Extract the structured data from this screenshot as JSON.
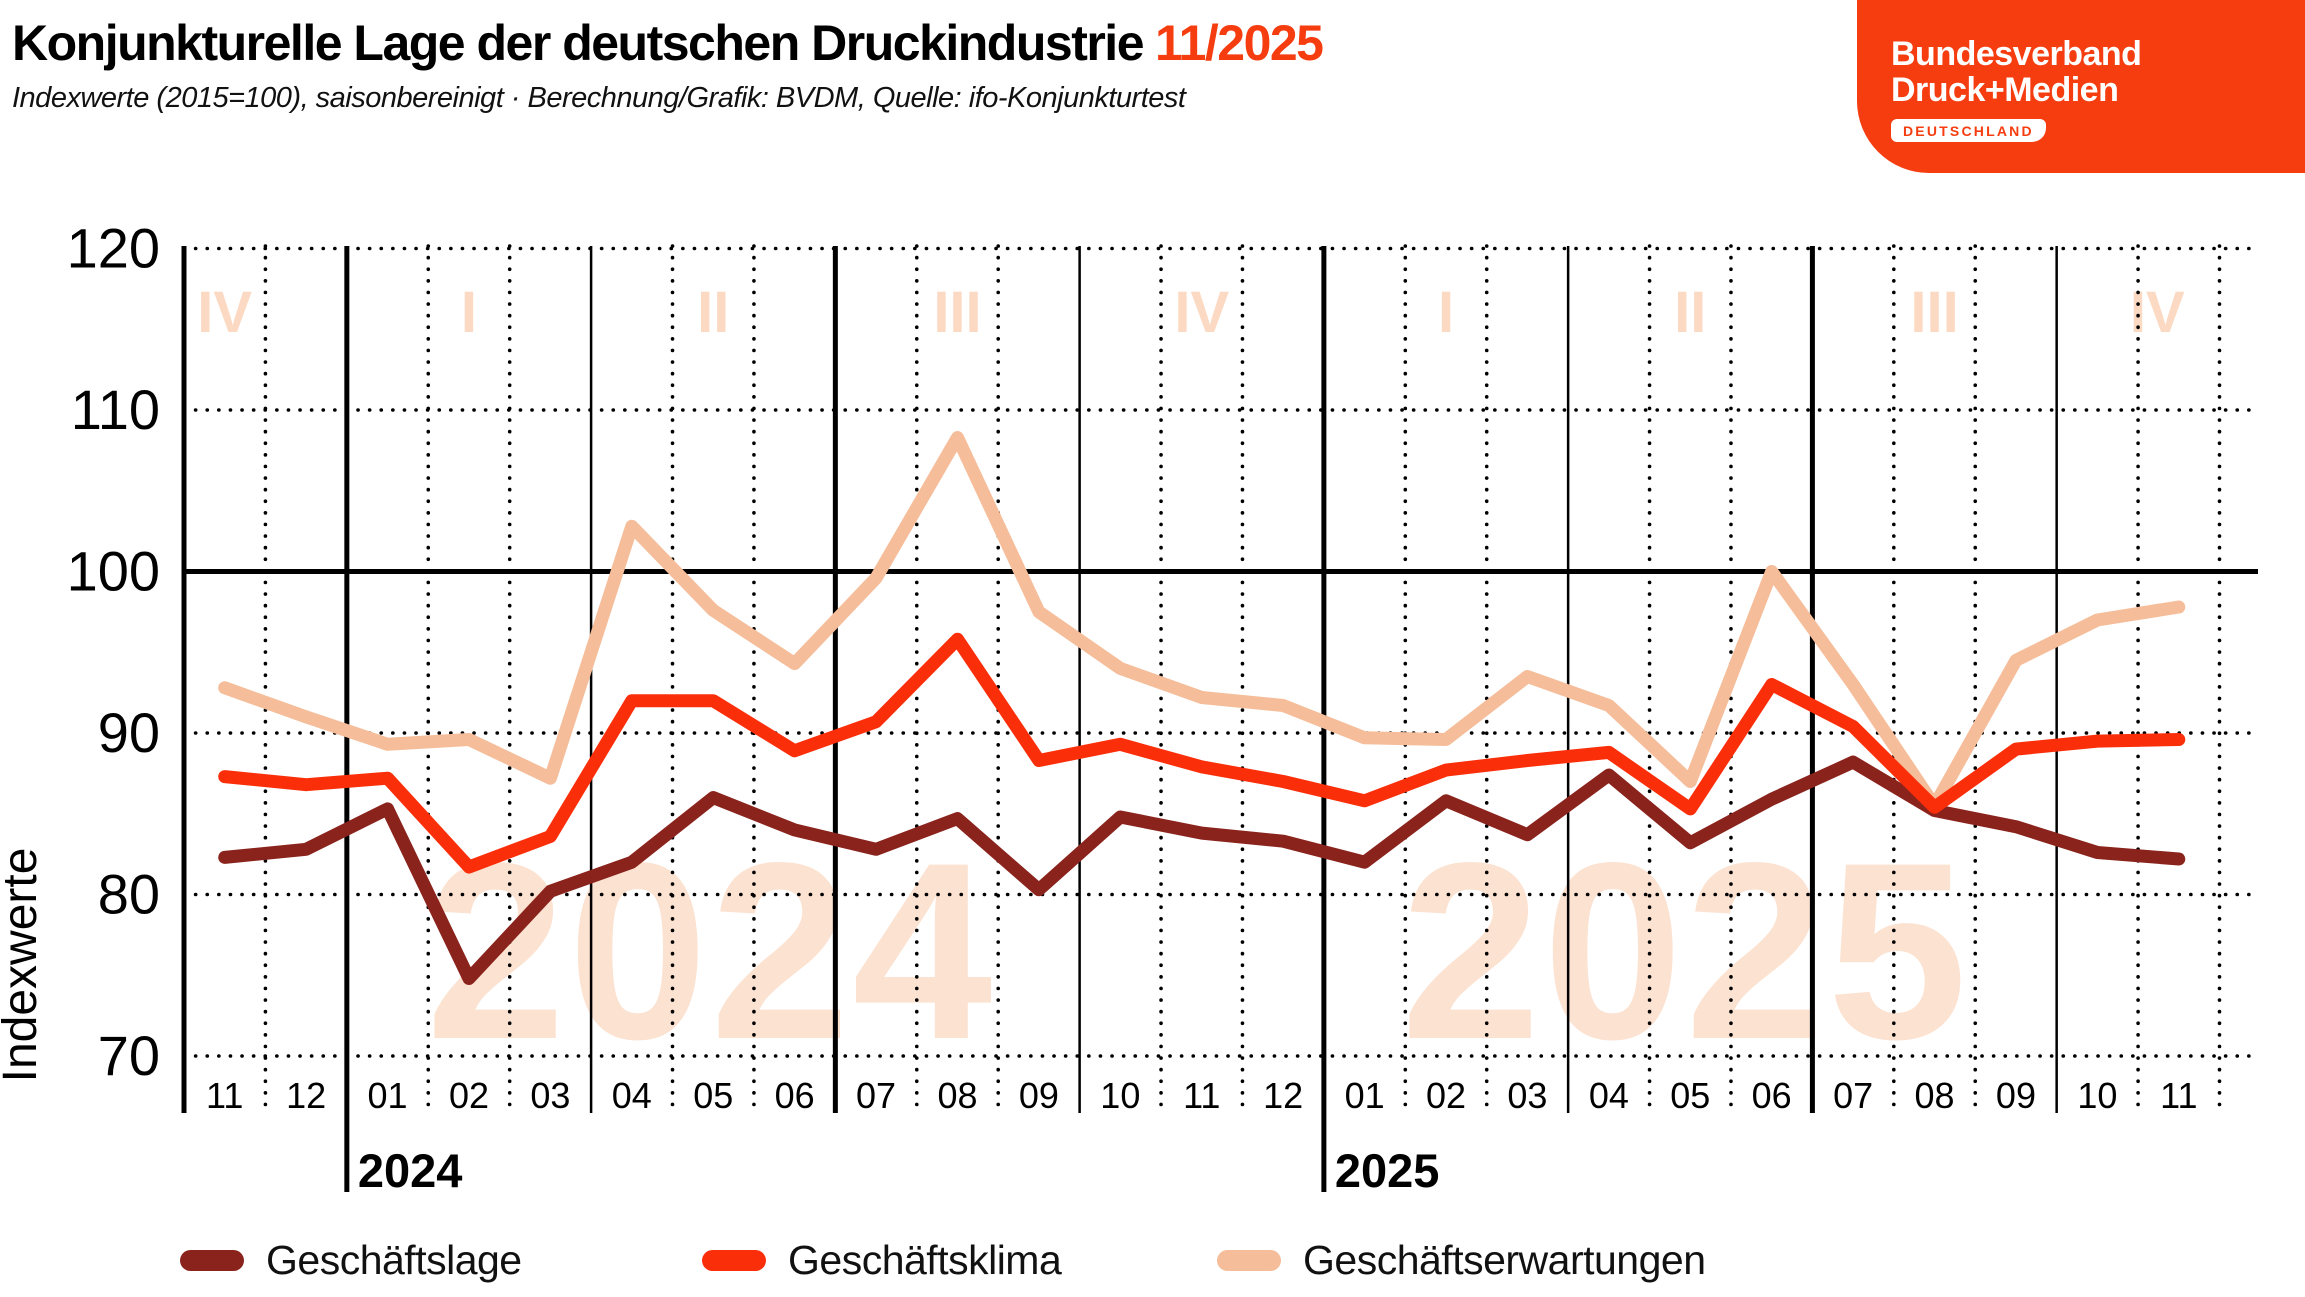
{
  "header": {
    "title": "Konjunkturelle Lage der deutschen Druckindustrie",
    "date_badge": "11/2025",
    "subtitle": "Indexwerte (2015=100), saisonbereinigt · Berechnung/Grafik: BVDM, Quelle: ifo-Konjunkturtest"
  },
  "logo": {
    "line1": "Bundesverband",
    "line2": "Druck+Medien",
    "badge": "DEUTSCHLAND",
    "brand_color": "#F53D10"
  },
  "chart_data": {
    "type": "line",
    "title": "Konjunkturelle Lage der deutschen Druckindustrie 11/2025",
    "ylabel": "Indexwerte",
    "ylim": [
      70,
      120
    ],
    "yticks": [
      120,
      110,
      100,
      90,
      80,
      70
    ],
    "baseline_value": 100,
    "grid": "dotted horizontal gridlines, dotted month separators, solid quarter separators",
    "legend_position": "bottom",
    "categories": [
      "11",
      "12",
      "01",
      "02",
      "03",
      "04",
      "05",
      "06",
      "07",
      "08",
      "09",
      "10",
      "11",
      "12",
      "01",
      "02",
      "03",
      "04",
      "05",
      "06",
      "07",
      "08",
      "09",
      "10",
      "11"
    ],
    "year_labels": [
      "2024",
      "2025"
    ],
    "watermarks": [
      "2024",
      "2025"
    ],
    "quarter_labels": [
      "IV",
      "I",
      "II",
      "III",
      "IV",
      "I",
      "II",
      "III",
      "IV"
    ],
    "series": [
      {
        "name": "Geschäftslage",
        "color": "#8B231D",
        "values": [
          82.3,
          82.8,
          85.3,
          74.8,
          80.2,
          82.0,
          86.0,
          84.0,
          82.8,
          84.7,
          80.3,
          84.8,
          83.8,
          83.3,
          82.0,
          85.8,
          83.7,
          87.4,
          83.2,
          85.9,
          88.2,
          85.2,
          84.2,
          82.6,
          82.2
        ]
      },
      {
        "name": "Geschäftsklima",
        "color": "#FB2E0A",
        "values": [
          87.3,
          86.8,
          87.2,
          81.7,
          83.6,
          92.0,
          92.0,
          88.9,
          90.7,
          95.8,
          88.3,
          89.3,
          87.9,
          87.0,
          85.8,
          87.7,
          88.3,
          88.8,
          85.3,
          93.0,
          90.4,
          85.4,
          89.0,
          89.5,
          89.6
        ]
      },
      {
        "name": "Geschäftserwartungen",
        "color": "#F5BD99",
        "values": [
          92.8,
          91.0,
          89.3,
          89.6,
          87.2,
          102.8,
          97.6,
          94.3,
          99.6,
          108.3,
          97.5,
          94.0,
          92.2,
          91.7,
          89.7,
          89.6,
          93.5,
          91.7,
          87.0,
          100.0,
          93.0,
          85.5,
          94.5,
          97.0,
          97.8
        ]
      }
    ],
    "colors": {
      "quarter_label": "#FBD9C3",
      "watermark": "#FCE2D1",
      "axis": "#000000"
    }
  },
  "legend": {
    "items": [
      {
        "label": "Geschäftslage"
      },
      {
        "label": "Geschäftsklima"
      },
      {
        "label": "Geschäftserwartungen"
      }
    ]
  }
}
